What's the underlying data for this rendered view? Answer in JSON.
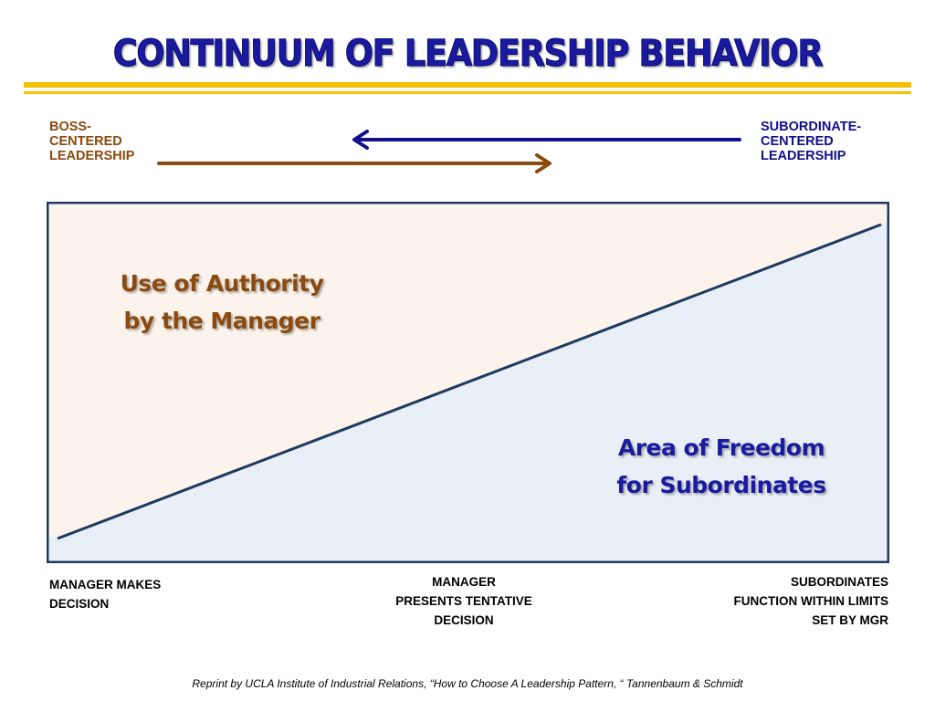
{
  "title": "CONTINUUM OF LEADERSHIP BEHAVIOR",
  "poles": {
    "left": [
      "BOSS-",
      "CENTERED",
      "LEADERSHIP"
    ],
    "right": [
      "SUBORDINATE-",
      "CENTERED",
      "LEADERSHIP"
    ]
  },
  "regions": {
    "authority": [
      "Use of Authority",
      "by the Manager"
    ],
    "freedom": [
      "Area of Freedom",
      "for Subordinates"
    ]
  },
  "bottom_labels": {
    "left": [
      "MANAGER MAKES",
      "DECISION"
    ],
    "middle": [
      "MANAGER",
      "PRESENTS TENTATIVE",
      "DECISION"
    ],
    "right": [
      "SUBORDINATES",
      "FUNCTION WITHIN LIMITS",
      "SET BY MGR"
    ]
  },
  "citation": "Reprint by UCLA Institute of Industrial Relations, “How to Choose A Leadership Pattern, “ Tannenbaum & Schmidt",
  "colors": {
    "title": "#1a1aa0",
    "gold_bar": "#f5c000",
    "boss": "#8a4a10",
    "subordinate": "#10108a",
    "authority_fill": "#fcf4ec",
    "freedom_fill": "#e9eff7",
    "border": "#1f3a5f"
  }
}
